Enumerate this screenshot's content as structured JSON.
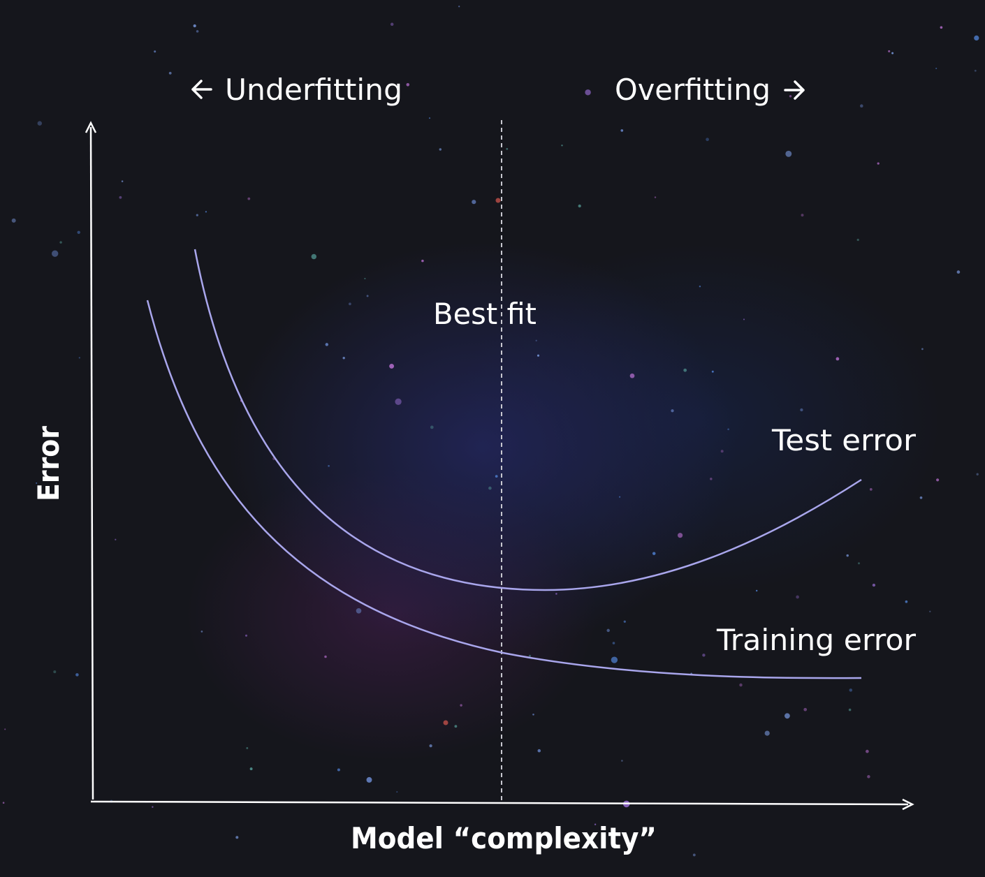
{
  "diagram": {
    "underfitting_label": "Underfitting",
    "overfitting_label": "Overfitting",
    "best_fit_label": "Best fit",
    "test_error_label": "Test error",
    "training_error_label": "Training error",
    "y_axis_label": "Error",
    "x_axis_label": "Model “complexity”",
    "colors": {
      "background": "#15161c",
      "curve": "#a9a6ec",
      "axis": "#ffffff",
      "divider": "#c8c8d0",
      "text": "#ffffff"
    }
  }
}
